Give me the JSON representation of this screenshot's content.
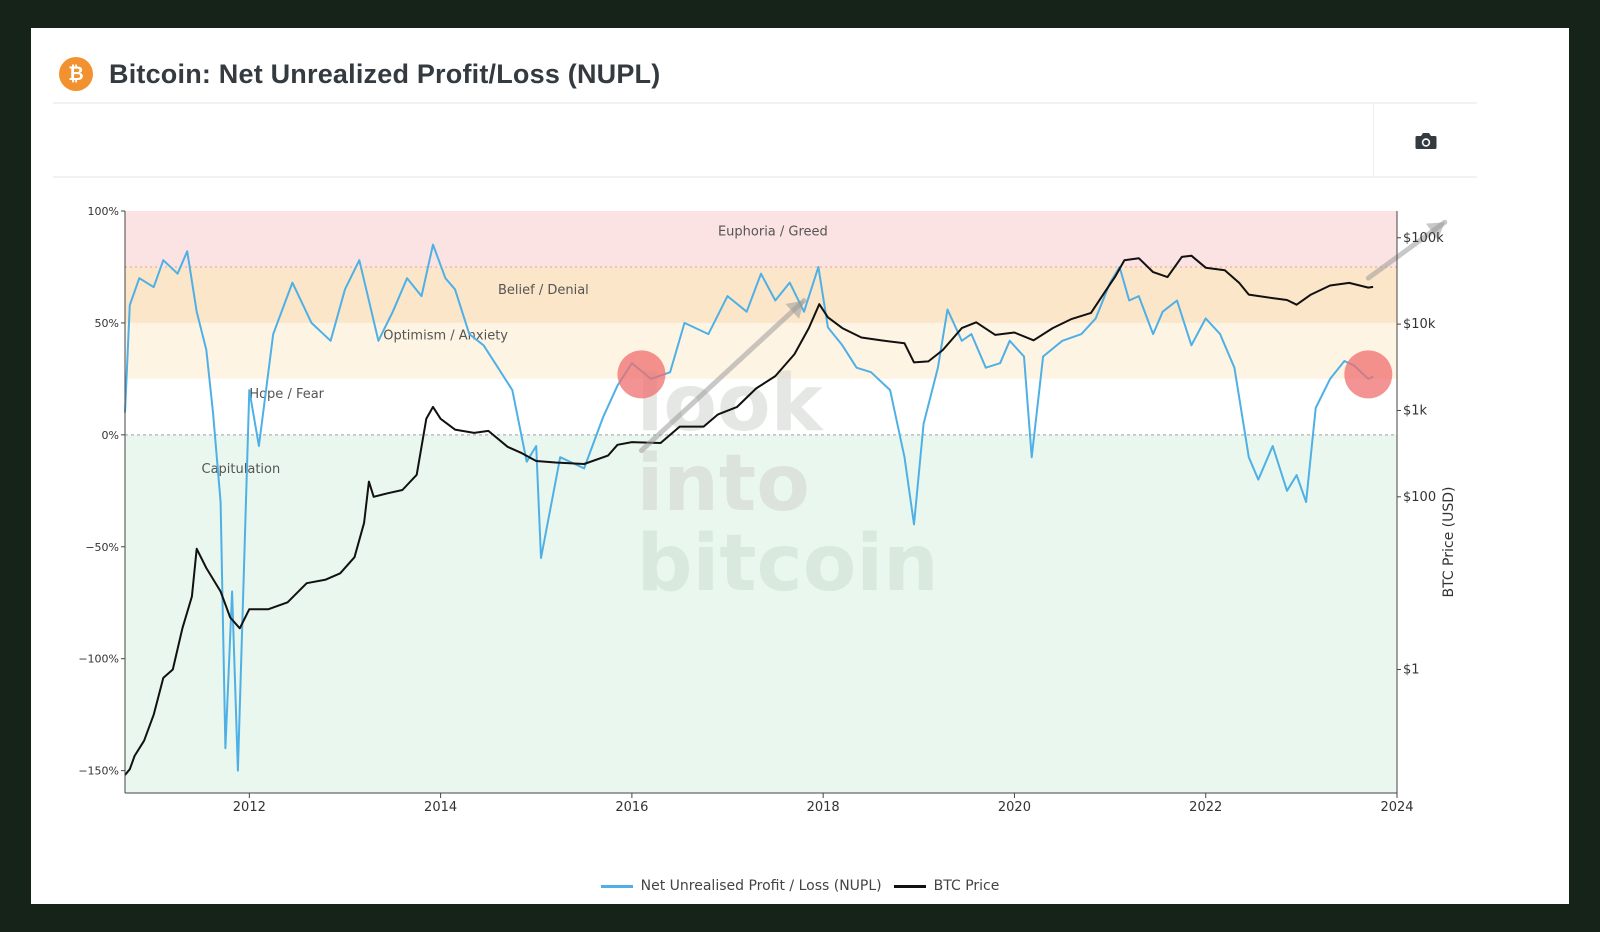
{
  "header": {
    "title": "Bitcoin: Net Unrealized Profit/Loss (NUPL)",
    "logo_glyph": "₿"
  },
  "toolbar": {
    "camera_icon": "camera-icon"
  },
  "watermark": [
    "look",
    "into",
    "bitcoin"
  ],
  "colors": {
    "nupl": "#4fb0e6",
    "price": "#111111",
    "euphoria_zone": "#fbe2e3",
    "belief_zone": "#fbe6c9",
    "optimism_zone": "#fef4e3",
    "hope_zone": "#ffffff",
    "capitulation_zone": "#eaf7ee",
    "highlight": "#ef6f6f",
    "brand": "#f2912f"
  },
  "legend": {
    "nupl_label": "Net Unrealised Profit / Loss (NUPL)",
    "price_label": "BTC Price"
  },
  "chart_data": {
    "type": "line",
    "x_range": [
      2010.7,
      2024.0
    ],
    "x_ticks": [
      {
        "value": 2012,
        "label": "2012"
      },
      {
        "value": 2014,
        "label": "2014"
      },
      {
        "value": 2016,
        "label": "2016"
      },
      {
        "value": 2018,
        "label": "2018"
      },
      {
        "value": 2020,
        "label": "2020"
      },
      {
        "value": 2022,
        "label": "2022"
      },
      {
        "value": 2024,
        "label": "2024"
      }
    ],
    "y_left": {
      "range": [
        -160,
        100
      ],
      "ticks": [
        {
          "value": 100,
          "label": "100%"
        },
        {
          "value": 50,
          "label": "50%"
        },
        {
          "value": 0,
          "label": "0%"
        },
        {
          "value": -50,
          "label": "−50%"
        },
        {
          "value": -100,
          "label": "−100%"
        },
        {
          "value": -150,
          "label": "−150%"
        }
      ]
    },
    "y_right": {
      "label": "BTC Price (USD)",
      "log_range": [
        -1.43,
        5.31
      ],
      "ticks": [
        {
          "value": 100000,
          "label": "$100k"
        },
        {
          "value": 10000,
          "label": "$10k"
        },
        {
          "value": 1000,
          "label": "$1k"
        },
        {
          "value": 100,
          "label": "$100"
        },
        {
          "value": 1,
          "label": "$1"
        }
      ]
    },
    "zones": [
      {
        "name": "Euphoria / Greed",
        "from": 75,
        "to": 100,
        "color_key": "euphoria_zone",
        "label_x": 2016.9,
        "label_y": 89
      },
      {
        "name": "Belief / Denial",
        "from": 50,
        "to": 75,
        "color_key": "belief_zone",
        "label_x": 2014.6,
        "label_y": 63
      },
      {
        "name": "Optimism / Anxiety",
        "from": 25,
        "to": 50,
        "color_key": "optimism_zone",
        "label_x": 2013.4,
        "label_y": 42.5
      },
      {
        "name": "Hope / Fear",
        "from": 0,
        "to": 25,
        "color_key": "hope_zone",
        "label_x": 2012.0,
        "label_y": 16.5
      },
      {
        "name": "Capitulation",
        "from": -160,
        "to": 0,
        "color_key": "capitulation_zone",
        "label_x": 2011.5,
        "label_y": -17
      }
    ],
    "series": [
      {
        "name": "Net Unrealised Profit / Loss (NUPL)",
        "axis": "left",
        "x": [
          2010.7,
          2010.75,
          2010.85,
          2011.0,
          2011.1,
          2011.25,
          2011.35,
          2011.45,
          2011.55,
          2011.62,
          2011.7,
          2011.75,
          2011.82,
          2011.88,
          2011.93,
          2012.0,
          2012.1,
          2012.25,
          2012.45,
          2012.65,
          2012.85,
          2013.0,
          2013.15,
          2013.25,
          2013.35,
          2013.5,
          2013.65,
          2013.8,
          2013.92,
          2014.05,
          2014.15,
          2014.3,
          2014.45,
          2014.6,
          2014.75,
          2014.9,
          2015.0,
          2015.05,
          2015.25,
          2015.5,
          2015.7,
          2015.85,
          2016.0,
          2016.2,
          2016.4,
          2016.55,
          2016.8,
          2017.0,
          2017.2,
          2017.35,
          2017.5,
          2017.65,
          2017.8,
          2017.95,
          2018.05,
          2018.2,
          2018.35,
          2018.5,
          2018.7,
          2018.85,
          2018.95,
          2019.05,
          2019.2,
          2019.3,
          2019.45,
          2019.55,
          2019.7,
          2019.85,
          2019.95,
          2020.1,
          2020.18,
          2020.3,
          2020.5,
          2020.7,
          2020.85,
          2021.0,
          2021.1,
          2021.2,
          2021.3,
          2021.45,
          2021.55,
          2021.7,
          2021.85,
          2022.0,
          2022.15,
          2022.3,
          2022.45,
          2022.55,
          2022.7,
          2022.85,
          2022.95,
          2023.05,
          2023.15,
          2023.3,
          2023.45,
          2023.55,
          2023.7,
          2023.75
        ],
        "y": [
          10,
          58,
          70,
          66,
          78,
          72,
          82,
          55,
          38,
          10,
          -30,
          -140,
          -70,
          -150,
          -80,
          20,
          -5,
          45,
          68,
          50,
          42,
          65,
          78,
          60,
          42,
          55,
          70,
          62,
          85,
          70,
          65,
          45,
          40,
          30,
          20,
          -12,
          -5,
          -55,
          -10,
          -15,
          8,
          22,
          32,
          25,
          28,
          50,
          45,
          62,
          55,
          72,
          60,
          68,
          55,
          75,
          48,
          40,
          30,
          28,
          20,
          -10,
          -40,
          5,
          30,
          56,
          42,
          45,
          30,
          32,
          42,
          35,
          -10,
          35,
          42,
          45,
          52,
          68,
          75,
          60,
          62,
          45,
          55,
          60,
          40,
          52,
          45,
          30,
          -10,
          -20,
          -5,
          -25,
          -18,
          -30,
          12,
          25,
          33,
          31,
          25,
          26
        ]
      },
      {
        "name": "BTC Price",
        "axis": "right",
        "x": [
          2010.7,
          2010.75,
          2010.8,
          2010.9,
          2011.0,
          2011.1,
          2011.2,
          2011.3,
          2011.4,
          2011.45,
          2011.55,
          2011.7,
          2011.8,
          2011.9,
          2012.0,
          2012.1,
          2012.2,
          2012.4,
          2012.6,
          2012.8,
          2012.95,
          2013.1,
          2013.2,
          2013.25,
          2013.3,
          2013.45,
          2013.6,
          2013.75,
          2013.85,
          2013.92,
          2014.0,
          2014.15,
          2014.35,
          2014.5,
          2014.7,
          2014.85,
          2015.0,
          2015.2,
          2015.5,
          2015.75,
          2015.85,
          2016.0,
          2016.3,
          2016.5,
          2016.75,
          2016.9,
          2017.1,
          2017.3,
          2017.5,
          2017.7,
          2017.85,
          2017.96,
          2018.05,
          2018.2,
          2018.4,
          2018.6,
          2018.85,
          2018.95,
          2019.1,
          2019.25,
          2019.45,
          2019.6,
          2019.8,
          2020.0,
          2020.2,
          2020.4,
          2020.6,
          2020.8,
          2020.95,
          2021.05,
          2021.15,
          2021.3,
          2021.45,
          2021.6,
          2021.75,
          2021.85,
          2022.0,
          2022.2,
          2022.35,
          2022.45,
          2022.7,
          2022.85,
          2022.95,
          2023.1,
          2023.3,
          2023.5,
          2023.7,
          2023.75
        ],
        "y": [
          0.06,
          0.07,
          0.1,
          0.15,
          0.3,
          0.8,
          1,
          3,
          7,
          25,
          15,
          8,
          4,
          3,
          5,
          5,
          5,
          6,
          10,
          11,
          13,
          20,
          50,
          150,
          100,
          110,
          120,
          180,
          800,
          1100,
          800,
          600,
          550,
          580,
          380,
          320,
          260,
          250,
          240,
          300,
          400,
          430,
          420,
          650,
          650,
          900,
          1100,
          1800,
          2500,
          4500,
          9000,
          17000,
          12000,
          9000,
          7000,
          6500,
          6000,
          3600,
          3700,
          5000,
          9000,
          10500,
          7500,
          8000,
          6500,
          9000,
          11500,
          13500,
          24000,
          35000,
          55000,
          58000,
          40000,
          35000,
          60000,
          62000,
          45000,
          42000,
          30000,
          22000,
          20000,
          19000,
          16800,
          22000,
          28000,
          30000,
          26500,
          27000
        ]
      }
    ],
    "annotations": [
      {
        "type": "highlight-circle",
        "x": 2016.1,
        "y_left": 27
      },
      {
        "type": "highlight-circle",
        "x": 2023.7,
        "y_left": 27
      },
      {
        "type": "trend-arrow",
        "from": [
          2016.1,
          -7
        ],
        "to": [
          2017.8,
          60
        ]
      },
      {
        "type": "trend-arrow",
        "from": [
          2023.7,
          70
        ],
        "to": [
          2024.5,
          95
        ]
      }
    ]
  }
}
